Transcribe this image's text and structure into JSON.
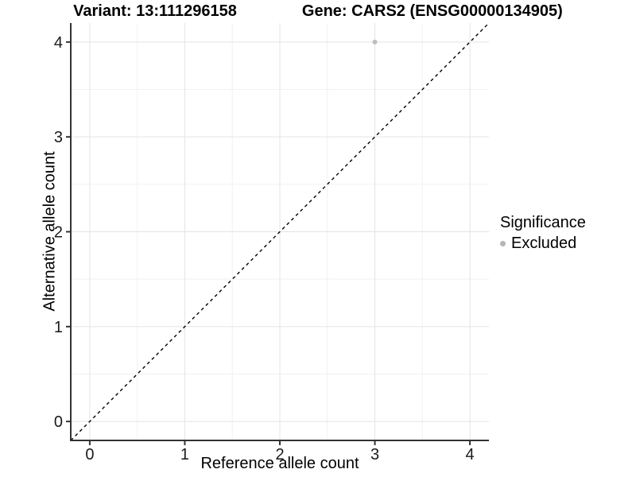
{
  "header": {
    "variant_title": "Variant: 13:111296158",
    "gene_title": "Gene: CARS2 (ENSG00000134905)"
  },
  "legend": {
    "title": "Significance",
    "items": [
      {
        "label": "Excluded",
        "color": "#b5b5b5",
        "marker": "circle-icon"
      }
    ]
  },
  "chart_data": {
    "type": "scatter",
    "title": "Variant: 13:111296158    Gene: CARS2 (ENSG00000134905)",
    "xlabel": "Reference allele count",
    "ylabel": "Alternative allele count",
    "xlim": [
      -0.2,
      4.2
    ],
    "ylim": [
      -0.2,
      4.2
    ],
    "xticks": [
      0,
      1,
      2,
      3,
      4
    ],
    "yticks": [
      0,
      1,
      2,
      3,
      4
    ],
    "minor_tick_step": 0.5,
    "grid": true,
    "series": [
      {
        "name": "Excluded",
        "color": "#bfbfbf",
        "points": [
          {
            "x": 3,
            "y": 4
          }
        ]
      }
    ],
    "reference_line": {
      "style": "dashed",
      "color": "#000000",
      "from": [
        -0.2,
        -0.2
      ],
      "to": [
        4.2,
        4.2
      ],
      "meaning": "identity line y = x"
    },
    "legend_position": "right",
    "colors": {
      "axis_line": "#333333",
      "tick_mark": "#333333",
      "tick_label": "#1a1a1a",
      "grid_major": "#e4e4e4",
      "grid_minor": "#f1f1f1",
      "background": "#ffffff"
    }
  }
}
